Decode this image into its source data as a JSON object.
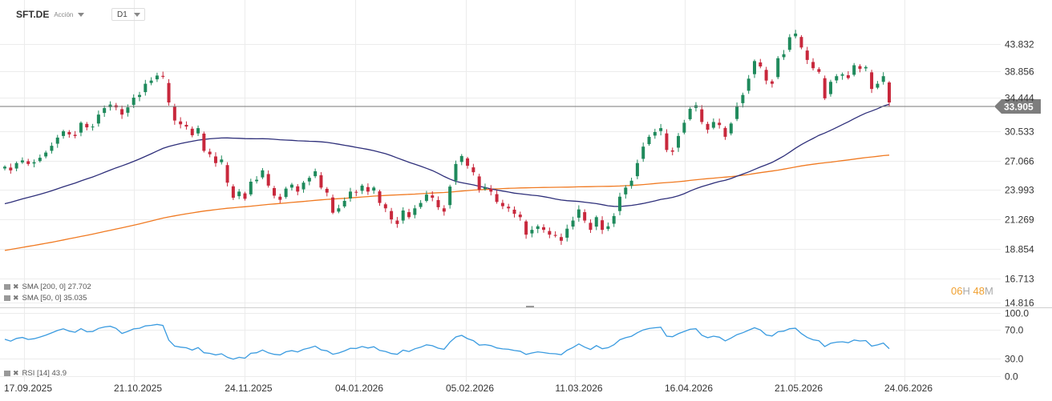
{
  "header": {
    "symbol": "SFT.DE",
    "type_label": "Acción",
    "timeframe": "D1"
  },
  "current_price_label": "33.905",
  "timer": {
    "h": "06",
    "hu": "H",
    "m": "48",
    "mu": "M"
  },
  "legend": {
    "sma200": "SMA [200, 0] 27.702",
    "sma50": "SMA [50, 0] 35.035",
    "rsi": "RSI [14] 43.9"
  },
  "colors": {
    "up": "#1f8a5c",
    "down": "#c8283c",
    "sma50": "#2e2f7a",
    "sma200": "#f07a22",
    "rsi": "#3a9be0",
    "price_line": "#777777"
  },
  "chart_data": [
    {
      "type": "candlestick",
      "title": "SFT.DE",
      "x_tick_labels": [
        "17.09.2025",
        "21.10.2025",
        "24.11.2025",
        "04.01.2026",
        "05.02.2026",
        "11.03.2026",
        "16.04.2026",
        "21.05.2026",
        "24.06.2026"
      ],
      "y_tick_labels": [
        "43.832",
        "38.856",
        "34.444",
        "30.533",
        "27.066",
        "23.993",
        "21.269",
        "18.854",
        "16.713",
        "14.816"
      ],
      "current_price": 33.905,
      "close_approx": [
        26.2,
        25.8,
        26.6,
        26.9,
        26.5,
        26.7,
        27.2,
        27.8,
        28.6,
        29.6,
        30.4,
        30.0,
        29.8,
        31.5,
        30.9,
        31.0,
        32.6,
        33.5,
        34.0,
        33.6,
        32.6,
        33.6,
        35.0,
        35.4,
        37.1,
        37.6,
        38.4,
        38.2,
        34.3,
        31.8,
        31.3,
        31.0,
        29.9,
        30.8,
        28.0,
        27.6,
        26.6,
        27.0,
        24.5,
        23.0,
        23.6,
        22.9,
        24.6,
        24.8,
        25.8,
        24.2,
        23.2,
        22.8,
        23.9,
        24.3,
        23.6,
        24.5,
        25.0,
        25.7,
        24.0,
        23.5,
        21.6,
        22.0,
        22.7,
        23.6,
        23.5,
        24.2,
        23.6,
        24.0,
        22.5,
        22.0,
        21.0,
        20.6,
        21.8,
        21.2,
        22.0,
        22.5,
        23.3,
        23.0,
        22.1,
        21.7,
        24.1,
        26.5,
        27.4,
        26.3,
        25.6,
        23.8,
        24.0,
        23.6,
        22.6,
        22.2,
        22.0,
        21.5,
        21.2,
        19.7,
        20.1,
        20.4,
        20.1,
        19.7,
        19.6,
        19.2,
        20.2,
        20.9,
        21.9,
        20.9,
        20.1,
        21.2,
        20.1,
        20.4,
        21.3,
        23.1,
        24.0,
        24.7,
        26.6,
        28.5,
        29.7,
        30.3,
        30.8,
        28.1,
        27.9,
        29.8,
        31.5,
        33.4,
        33.9,
        31.6,
        30.6,
        31.6,
        31.2,
        29.7,
        31.4,
        33.8,
        35.4,
        37.9,
        40.8,
        39.9,
        37.6,
        37.1,
        41.3,
        42.0,
        45.1,
        45.8,
        43.2,
        41.0,
        39.6,
        39.0,
        34.9,
        37.4,
        38.3,
        38.6,
        38.0,
        40.1,
        39.5,
        39.8,
        36.3,
        37.1,
        38.3,
        34.3
      ]
    },
    {
      "type": "line",
      "name": "SMA [200, 0]",
      "last_value": 27.702
    },
    {
      "type": "line",
      "name": "SMA [50, 0]",
      "last_value": 35.035
    },
    {
      "type": "line",
      "name": "RSI [14]",
      "last_value": 43.9,
      "y_tick_labels": [
        "100.0",
        "70.0",
        "30.0",
        "0.0"
      ],
      "ylim": [
        0,
        100
      ]
    }
  ]
}
